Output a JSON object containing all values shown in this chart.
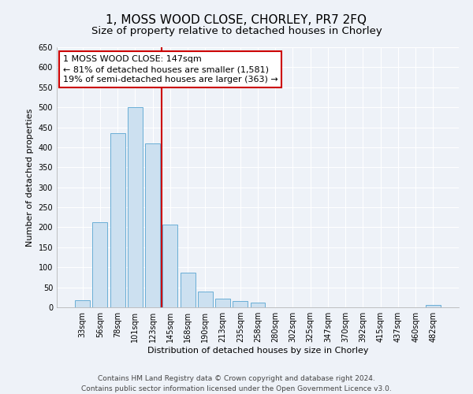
{
  "title": "1, MOSS WOOD CLOSE, CHORLEY, PR7 2FQ",
  "subtitle": "Size of property relative to detached houses in Chorley",
  "xlabel": "Distribution of detached houses by size in Chorley",
  "ylabel": "Number of detached properties",
  "bar_labels": [
    "33sqm",
    "56sqm",
    "78sqm",
    "101sqm",
    "123sqm",
    "145sqm",
    "168sqm",
    "190sqm",
    "213sqm",
    "235sqm",
    "258sqm",
    "280sqm",
    "302sqm",
    "325sqm",
    "347sqm",
    "370sqm",
    "392sqm",
    "415sqm",
    "437sqm",
    "460sqm",
    "482sqm"
  ],
  "bar_values": [
    18,
    213,
    436,
    500,
    410,
    207,
    87,
    40,
    22,
    15,
    11,
    0,
    0,
    0,
    0,
    0,
    0,
    0,
    0,
    0,
    5
  ],
  "bar_color_fill": "#cce0f0",
  "bar_color_edge": "#6aaed6",
  "vline_x_index": 5,
  "vline_color": "#cc0000",
  "annotation_title": "1 MOSS WOOD CLOSE: 147sqm",
  "annotation_line1": "← 81% of detached houses are smaller (1,581)",
  "annotation_line2": "19% of semi-detached houses are larger (363) →",
  "annotation_box_edgecolor": "#cc0000",
  "ylim": [
    0,
    650
  ],
  "yticks": [
    0,
    50,
    100,
    150,
    200,
    250,
    300,
    350,
    400,
    450,
    500,
    550,
    600,
    650
  ],
  "footer1": "Contains HM Land Registry data © Crown copyright and database right 2024.",
  "footer2": "Contains public sector information licensed under the Open Government Licence v3.0.",
  "bg_color": "#eef2f8",
  "grid_color": "#ffffff",
  "title_fontsize": 11,
  "subtitle_fontsize": 9.5,
  "axis_label_fontsize": 8,
  "tick_fontsize": 7,
  "footer_fontsize": 6.5,
  "annotation_fontsize": 8
}
